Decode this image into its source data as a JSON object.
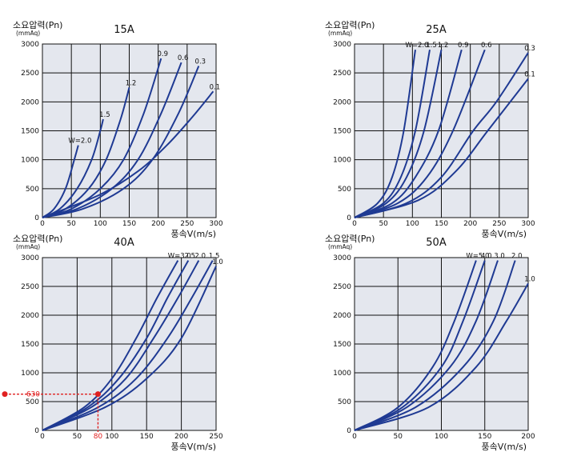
{
  "chart_data": [
    {
      "type": "line",
      "title": "15A",
      "ylabel": "소요압력(Pn)",
      "ylabel_unit": "(mmAq)",
      "xlabel": "풍속V(m/s)",
      "xlim": [
        0,
        300
      ],
      "ylim": [
        0,
        3000
      ],
      "xticks": [
        "0",
        "50",
        "100",
        "150",
        "200",
        "250",
        "300"
      ],
      "yticks": [
        "0",
        "500",
        "1000",
        "1500",
        "2000",
        "2500",
        "3000"
      ],
      "series": [
        {
          "name": "W=2.0",
          "x": [
            0,
            20,
            40,
            55,
            62
          ],
          "y": [
            0,
            150,
            500,
            1000,
            1250
          ]
        },
        {
          "name": "1.5",
          "x": [
            0,
            30,
            60,
            85,
            100,
            105
          ],
          "y": [
            0,
            150,
            500,
            1000,
            1500,
            1700
          ]
        },
        {
          "name": "1.2",
          "x": [
            0,
            40,
            80,
            110,
            135,
            150
          ],
          "y": [
            0,
            150,
            500,
            1000,
            1700,
            2250
          ]
        },
        {
          "name": "0.9",
          "x": [
            0,
            50,
            100,
            140,
            175,
            205
          ],
          "y": [
            0,
            150,
            500,
            1000,
            1800,
            2750
          ]
        },
        {
          "name": "0.6",
          "x": [
            0,
            60,
            120,
            165,
            205,
            240
          ],
          "y": [
            0,
            150,
            500,
            1000,
            1800,
            2680
          ]
        },
        {
          "name": "0.3",
          "x": [
            0,
            70,
            140,
            190,
            235,
            270
          ],
          "y": [
            0,
            150,
            500,
            1000,
            1800,
            2620
          ]
        },
        {
          "name": "0.1",
          "x": [
            0,
            100,
            165,
            215,
            260,
            295
          ],
          "y": [
            0,
            400,
            800,
            1250,
            1750,
            2180
          ]
        }
      ]
    },
    {
      "type": "line",
      "title": "25A",
      "ylabel": "소요압력(Pn)",
      "ylabel_unit": "(mmAq)",
      "xlabel": "풍속V(m/s)",
      "xlim": [
        0,
        300
      ],
      "ylim": [
        0,
        3000
      ],
      "xticks": [
        "0",
        "50",
        "100",
        "150",
        "200",
        "250",
        "300"
      ],
      "yticks": [
        "0",
        "500",
        "1000",
        "1500",
        "2000",
        "2500",
        "3000"
      ],
      "series": [
        {
          "name": "W=2.0",
          "x": [
            0,
            40,
            65,
            85,
            105
          ],
          "y": [
            0,
            250,
            700,
            1500,
            2900
          ]
        },
        {
          "name": "1.5",
          "x": [
            0,
            50,
            80,
            105,
            130
          ],
          "y": [
            0,
            250,
            700,
            1500,
            2900
          ]
        },
        {
          "name": "1.2",
          "x": [
            0,
            55,
            90,
            120,
            150
          ],
          "y": [
            0,
            250,
            700,
            1500,
            2900
          ]
        },
        {
          "name": "0.9",
          "x": [
            0,
            65,
            105,
            145,
            185
          ],
          "y": [
            0,
            250,
            700,
            1500,
            2900
          ]
        },
        {
          "name": "0.6",
          "x": [
            0,
            75,
            125,
            170,
            225
          ],
          "y": [
            0,
            250,
            700,
            1500,
            2900
          ]
        },
        {
          "name": "0.3",
          "x": [
            0,
            90,
            150,
            205,
            245,
            300
          ],
          "y": [
            0,
            250,
            700,
            1500,
            2000,
            2850
          ]
        },
        {
          "name": "0.1",
          "x": [
            0,
            110,
            175,
            230,
            300
          ],
          "y": [
            0,
            300,
            800,
            1500,
            2400
          ]
        }
      ]
    },
    {
      "type": "line",
      "title": "40A",
      "ylabel": "소요압력(Pn)",
      "ylabel_unit": "(mmAq)",
      "xlabel": "풍속V(m/s)",
      "xlim": [
        0,
        250
      ],
      "ylim": [
        0,
        3000
      ],
      "xticks": [
        "0",
        "50",
        "100",
        "150",
        "200",
        "250"
      ],
      "yticks": [
        "0",
        "500",
        "1000",
        "1500",
        "2000",
        "2500",
        "3000"
      ],
      "series": [
        {
          "name": "W=3.0",
          "x": [
            0,
            60,
            100,
            135,
            165,
            195
          ],
          "y": [
            0,
            400,
            900,
            1600,
            2300,
            2950
          ]
        },
        {
          "name": "2.5",
          "x": [
            0,
            65,
            110,
            150,
            180,
            210
          ],
          "y": [
            0,
            400,
            900,
            1600,
            2300,
            2950
          ]
        },
        {
          "name": "2.0",
          "x": [
            0,
            70,
            120,
            160,
            195,
            225
          ],
          "y": [
            0,
            400,
            900,
            1600,
            2300,
            2950
          ]
        },
        {
          "name": "1.5",
          "x": [
            0,
            80,
            135,
            180,
            215,
            245
          ],
          "y": [
            0,
            400,
            900,
            1600,
            2300,
            2950
          ]
        },
        {
          "name": "1.0",
          "x": [
            0,
            90,
            150,
            200,
            250
          ],
          "y": [
            0,
            400,
            900,
            1600,
            2850
          ]
        }
      ],
      "annotation": {
        "x": 80,
        "y": 630,
        "x_label": "80",
        "y_label": "630"
      }
    },
    {
      "type": "line",
      "title": "50A",
      "ylabel": "소요압력(Pn)",
      "ylabel_unit": "(mmAq)",
      "xlabel": "풍속V(m/s)",
      "xlim": [
        0,
        200
      ],
      "ylim": [
        0,
        3000
      ],
      "xticks": [
        "0",
        "50",
        "100",
        "150",
        "200"
      ],
      "yticks": [
        "0",
        "500",
        "1000",
        "1500",
        "2000",
        "2500",
        "3000"
      ],
      "series": [
        {
          "name": "W=5.0",
          "x": [
            0,
            50,
            90,
            115,
            140
          ],
          "y": [
            0,
            400,
            1100,
            1900,
            2950
          ]
        },
        {
          "name": "4.0",
          "x": [
            0,
            55,
            100,
            125,
            150
          ],
          "y": [
            0,
            400,
            1100,
            1900,
            2950
          ]
        },
        {
          "name": "3.0",
          "x": [
            0,
            60,
            110,
            140,
            165
          ],
          "y": [
            0,
            400,
            1100,
            1900,
            2950
          ]
        },
        {
          "name": "2.0",
          "x": [
            0,
            70,
            125,
            160,
            185
          ],
          "y": [
            0,
            400,
            1100,
            1900,
            2950
          ]
        },
        {
          "name": "1.0",
          "x": [
            0,
            85,
            140,
            175,
            200
          ],
          "y": [
            0,
            400,
            1100,
            1900,
            2550
          ]
        }
      ]
    }
  ]
}
